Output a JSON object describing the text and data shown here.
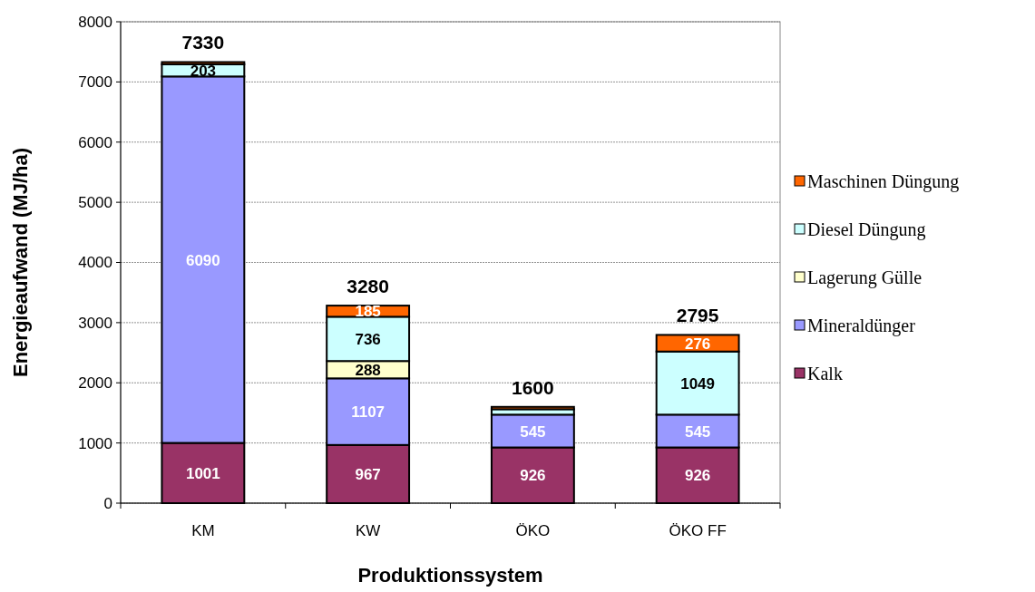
{
  "chart_data": {
    "type": "bar",
    "stacked": true,
    "xlabel": "Produktionssystem",
    "ylabel": "Energieaufwand (MJ/ha)",
    "categories": [
      "KM",
      "KW",
      "ÖKO",
      "ÖKO FF"
    ],
    "series": [
      {
        "name": "Kalk",
        "color": "#993366",
        "values": [
          1001,
          967,
          926,
          926
        ],
        "value_labels": [
          "1001",
          "967",
          "926",
          "926"
        ]
      },
      {
        "name": "Mineraldünger",
        "color": "#9999ff",
        "values": [
          6090,
          1107,
          545,
          545
        ],
        "value_labels": [
          "6090",
          "1107",
          "545",
          "545"
        ]
      },
      {
        "name": "Lagerung Gülle",
        "color": "#ffffcc",
        "values": [
          null,
          288,
          null,
          null
        ],
        "value_labels": [
          null,
          "288",
          null,
          null
        ]
      },
      {
        "name": "Diesel Düngung",
        "color": "#ccffff",
        "values": [
          203,
          736,
          90,
          1049
        ],
        "value_labels": [
          "203",
          "736",
          null,
          "1049"
        ]
      },
      {
        "name": "Maschinen Düngung",
        "color": "#ff6600",
        "values": [
          36,
          185,
          39,
          276
        ],
        "value_labels": [
          null,
          "185",
          null,
          "276"
        ]
      }
    ],
    "totals": [
      "7330",
      "3280",
      "1600",
      "2795"
    ],
    "ylim": [
      0,
      8000
    ],
    "yticks": [
      0,
      1000,
      2000,
      3000,
      4000,
      5000,
      6000,
      7000,
      8000
    ],
    "grid": "y",
    "legend": "right"
  }
}
